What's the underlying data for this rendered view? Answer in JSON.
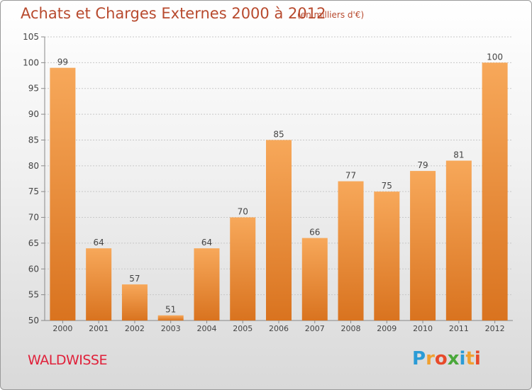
{
  "title": "Achats et Charges Externes 2000 à 2012",
  "unit": "(en milliers d'€)",
  "city": "WALDWISSE",
  "logo": {
    "letters": [
      "P",
      "r",
      "o",
      "x",
      "i",
      "t",
      "i"
    ],
    "colors": [
      "#2a9bd6",
      "#f0a030",
      "#e84a2a",
      "#4aa83a",
      "#2a9bd6",
      "#f0a030",
      "#e84a2a"
    ]
  },
  "colors": {
    "bar_top": "#f7a85a",
    "bar_bottom": "#d9731f",
    "grid": "#c8c8c8",
    "text": "#444444",
    "accent": "#b84a2e"
  },
  "chart_data": {
    "type": "bar",
    "title": "Achats et Charges Externes 2000 à 2012",
    "categories": [
      "2000",
      "2001",
      "2002",
      "2003",
      "2004",
      "2005",
      "2006",
      "2007",
      "2008",
      "2009",
      "2010",
      "2011",
      "2012"
    ],
    "values": [
      99,
      64,
      57,
      51,
      64,
      70,
      85,
      66,
      77,
      75,
      79,
      81,
      100
    ],
    "ylim": [
      50,
      105
    ],
    "yticks": [
      50,
      55,
      60,
      65,
      70,
      75,
      80,
      85,
      90,
      95,
      100,
      105
    ],
    "xlabel": "",
    "ylabel": "",
    "grid": true
  }
}
